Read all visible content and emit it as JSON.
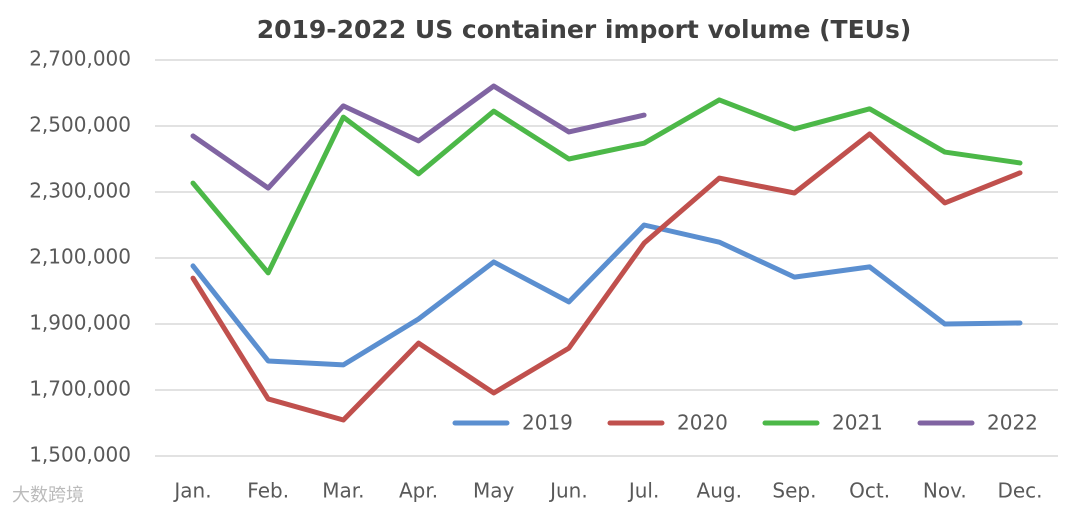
{
  "chart_data": {
    "type": "line",
    "title": "2019-2022 US container import volume (TEUs)",
    "categories": [
      "Jan.",
      "Feb.",
      "Mar.",
      "Apr.",
      "May",
      "Jun.",
      "Jul.",
      "Aug.",
      "Sep.",
      "Oct.",
      "Nov.",
      "Dec."
    ],
    "series": [
      {
        "name": "2019",
        "color": "#5b8fd0",
        "values": [
          2076000,
          1788000,
          1776000,
          1915000,
          2088000,
          1967000,
          2200000,
          2148000,
          2042000,
          2073000,
          1900000,
          1903000
        ]
      },
      {
        "name": "2020",
        "color": "#c0504d",
        "values": [
          2039000,
          1673000,
          1609000,
          1842000,
          1691000,
          1827000,
          2145000,
          2342000,
          2297000,
          2476000,
          2267000,
          2358000
        ]
      },
      {
        "name": "2021",
        "color": "#4cb848",
        "values": [
          2327000,
          2055000,
          2527000,
          2355000,
          2545000,
          2400000,
          2448000,
          2579000,
          2491000,
          2552000,
          2421000,
          2388000
        ]
      },
      {
        "name": "2022",
        "color": "#8064a2",
        "values": [
          2470000,
          2312000,
          2561000,
          2455000,
          2621000,
          2482000,
          2533000,
          null,
          null,
          null,
          null,
          null
        ]
      }
    ],
    "ylim": [
      1500000,
      2700000
    ],
    "yticks": [
      {
        "value": 1500000,
        "label": "1,500,000"
      },
      {
        "value": 1700000,
        "label": "1,700,000"
      },
      {
        "value": 1900000,
        "label": "1,900,000"
      },
      {
        "value": 2100000,
        "label": "2,100,000"
      },
      {
        "value": 2300000,
        "label": "2,300,000"
      },
      {
        "value": 2500000,
        "label": "2,500,000"
      },
      {
        "value": 2700000,
        "label": "2,700,000"
      }
    ],
    "grid": true,
    "legend": "lower right",
    "watermark": "大数跨境"
  }
}
